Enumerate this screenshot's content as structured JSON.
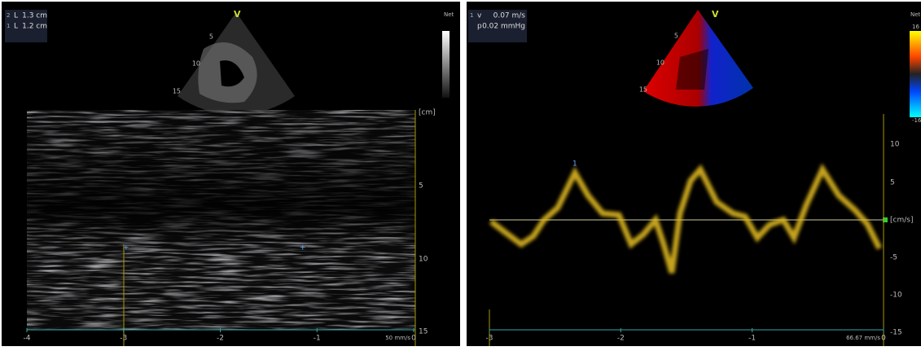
{
  "left_panel": {
    "measurements": [
      {
        "index": "2",
        "label": "L",
        "value": "1.3 cm"
      },
      {
        "index": "1",
        "label": "L",
        "value": "1.2 cm"
      }
    ],
    "view_marker": "V",
    "sector_depths": [
      "5",
      "10",
      "15"
    ],
    "map_label": "Net",
    "depth_axis": {
      "unit": "[cm]",
      "ticks": [
        "5",
        "10",
        "15"
      ]
    },
    "time_axis": {
      "ticks": [
        "-4",
        "-3",
        "-2",
        "-1",
        "0"
      ]
    },
    "sweep_speed": "50 mm/s"
  },
  "right_panel": {
    "measurements": [
      {
        "index": "1",
        "label": "v",
        "value": "0.07 m/s"
      },
      {
        "label": "p",
        "value": "0.02 mmHg"
      }
    ],
    "view_marker": "V",
    "sector_depths": [
      "5",
      "10",
      "15"
    ],
    "map_label": "Net",
    "color_scale": [
      "16",
      "-16"
    ],
    "velocity_axis": {
      "unit": "[cm/s]",
      "ticks": [
        "10",
        "5",
        "-5",
        "-10",
        "-15"
      ]
    },
    "time_axis": {
      "ticks": [
        "-3",
        "-2",
        "-1",
        "0"
      ]
    },
    "sweep_speed": "66.67 mm/s"
  }
}
